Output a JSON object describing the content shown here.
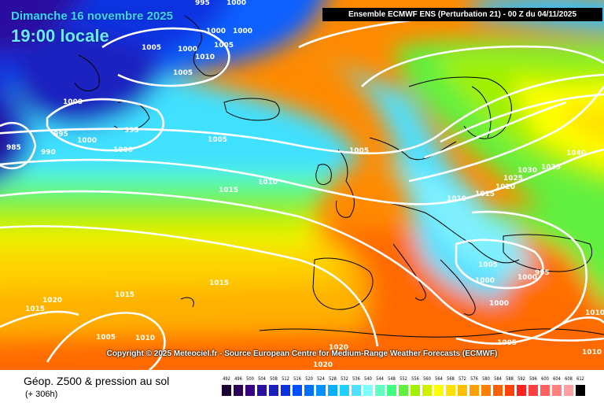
{
  "header": {
    "date_text": "Dimanche 16 novembre 2025",
    "time_text": "19:00 locale",
    "run_text": "Ensemble ECMWF ENS  (Perturbation 21)  -  00 Z du 04/11/2025"
  },
  "copyright": "Copyright © 2025 Meteociel.fr - Source European Centre for Medium-Range Weather Forecasts (ECMWF)",
  "footer": {
    "field_title": "Géop. Z500 & pression au sol",
    "lead_time": "(+ 306h)"
  },
  "scale": {
    "labels": [
      "492",
      "496",
      "500",
      "504",
      "508",
      "512",
      "516",
      "520",
      "524",
      "528",
      "532",
      "536",
      "540",
      "544",
      "548",
      "552",
      "556",
      "560",
      "564",
      "568",
      "572",
      "576",
      "580",
      "584",
      "588",
      "592",
      "596",
      "600",
      "604",
      "608",
      "612"
    ],
    "colors": [
      "#1a0030",
      "#2a0058",
      "#3a0080",
      "#2a10a0",
      "#1a20c0",
      "#0a30e0",
      "#0050ff",
      "#0070ff",
      "#0090ff",
      "#00b0ff",
      "#20d0ff",
      "#50e0ff",
      "#80ffff",
      "#60ffc0",
      "#40ff80",
      "#60f040",
      "#a0f000",
      "#d0f000",
      "#ffff00",
      "#ffe000",
      "#ffc000",
      "#ffa000",
      "#ff8000",
      "#ff6000",
      "#ff4000",
      "#ff2020",
      "#ff4040",
      "#ff6060",
      "#ff8080",
      "#ffa0a0",
      "#000000"
    ]
  },
  "isobar_labels": [
    "995",
    "1000",
    "1000",
    "1000",
    "1005",
    "1000",
    "1010",
    "1005",
    "1005",
    "1000",
    "995",
    "995",
    "1000",
    "1000",
    "985",
    "990",
    "1005",
    "1005",
    "1015",
    "1010",
    "1015",
    "1020",
    "1015",
    "1015",
    "1005",
    "1010",
    "1020",
    "1010",
    "1015",
    "1025",
    "1030",
    "1035",
    "1040",
    "1005",
    "1000",
    "995",
    "1000",
    "1000",
    "1005",
    "1010",
    "1010",
    "1020",
    "1020"
  ],
  "colors": {
    "isobar": "#ffffff",
    "land_outline": "#000000"
  }
}
